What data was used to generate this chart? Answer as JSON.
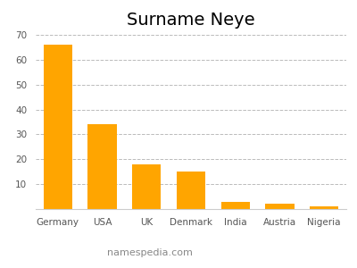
{
  "title": "Surname Neye",
  "categories": [
    "Germany",
    "USA",
    "UK",
    "Denmark",
    "India",
    "Austria",
    "Nigeria"
  ],
  "values": [
    66,
    34,
    18,
    15,
    3,
    2,
    1
  ],
  "bar_color": "#FFA500",
  "ylim": [
    0,
    70
  ],
  "yticks": [
    10,
    20,
    30,
    40,
    50,
    60,
    70
  ],
  "grid_color": "#bbbbbb",
  "background_color": "#ffffff",
  "watermark": "namespedia.com",
  "title_fontsize": 14,
  "tick_fontsize": 7.5,
  "watermark_fontsize": 8,
  "watermark_color": "#888888"
}
